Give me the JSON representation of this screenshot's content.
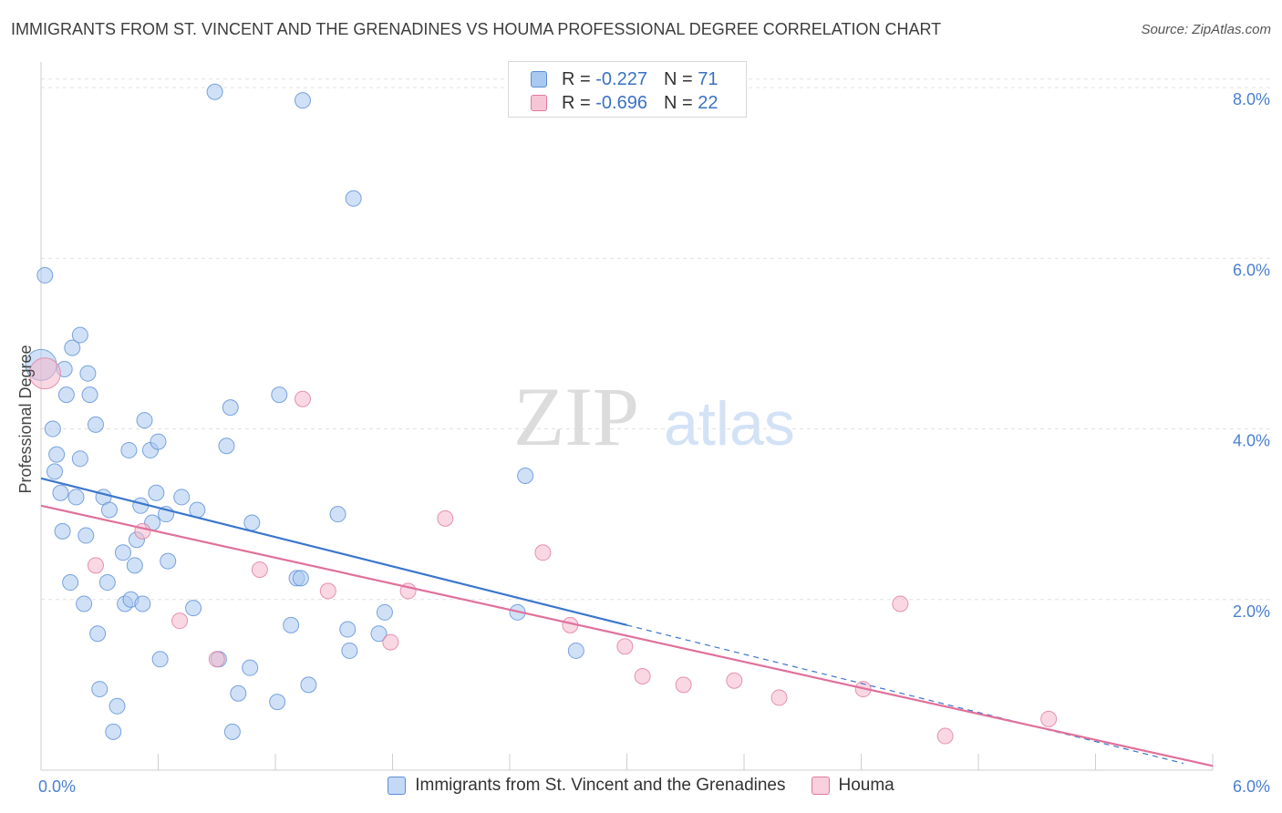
{
  "header": {
    "title": "IMMIGRANTS FROM ST. VINCENT AND THE GRENADINES VS HOUMA PROFESSIONAL DEGREE CORRELATION CHART",
    "source": "Source: ZipAtlas.com"
  },
  "watermark": {
    "zip": "ZIP",
    "atlas": "atlas"
  },
  "legend": {
    "rows": [
      {
        "r_label": "R =",
        "r_value": "-0.227",
        "n_label": "N =",
        "n_value": "71"
      },
      {
        "r_label": "R =",
        "r_value": "-0.696",
        "n_label": "N =",
        "n_value": "22"
      }
    ]
  },
  "colors": {
    "blue_fill": "#a9c9f1",
    "blue_stroke": "#5b8fd6",
    "blue_line": "#3a76cc",
    "pink_fill": "#f6b8cc",
    "pink_stroke": "#e07a9c",
    "pink_line": "#e0709a",
    "tick_text": "#4a7fd0",
    "grid": "#e2e2e2"
  },
  "chart_data": {
    "type": "scatter",
    "title": "IMMIGRANTS FROM ST. VINCENT AND THE GRENADINES VS HOUMA PROFESSIONAL DEGREE CORRELATION CHART",
    "xlabel": "",
    "ylabel": "Professional Degree",
    "xlim": [
      0,
      6
    ],
    "ylim": [
      0,
      8.3
    ],
    "x_tick_labels": [
      "0.0%",
      "6.0%"
    ],
    "y_ticks": [
      2,
      4,
      6,
      8
    ],
    "y_tick_labels": [
      "2.0%",
      "4.0%",
      "6.0%",
      "8.0%"
    ],
    "grid": true,
    "legend_position": "top-center",
    "series": [
      {
        "name": "Immigrants from St. Vincent and the Grenadines",
        "color": "#a9c9f1",
        "points": [
          [
            0.0,
            4.75
          ],
          [
            0.02,
            5.8
          ],
          [
            0.06,
            4.0
          ],
          [
            0.07,
            3.5
          ],
          [
            0.08,
            3.7
          ],
          [
            0.1,
            3.25
          ],
          [
            0.11,
            2.8
          ],
          [
            0.12,
            4.7
          ],
          [
            0.13,
            4.4
          ],
          [
            0.16,
            4.95
          ],
          [
            0.15,
            2.2
          ],
          [
            0.18,
            3.2
          ],
          [
            0.2,
            3.65
          ],
          [
            0.2,
            5.1
          ],
          [
            0.22,
            1.95
          ],
          [
            0.23,
            2.75
          ],
          [
            0.24,
            4.65
          ],
          [
            0.25,
            4.4
          ],
          [
            0.28,
            4.05
          ],
          [
            0.29,
            1.6
          ],
          [
            0.3,
            0.95
          ],
          [
            0.32,
            3.2
          ],
          [
            0.34,
            2.2
          ],
          [
            0.35,
            3.05
          ],
          [
            0.37,
            0.45
          ],
          [
            0.39,
            0.75
          ],
          [
            0.42,
            2.55
          ],
          [
            0.43,
            1.95
          ],
          [
            0.45,
            3.75
          ],
          [
            0.46,
            2.0
          ],
          [
            0.48,
            2.4
          ],
          [
            0.49,
            2.7
          ],
          [
            0.51,
            3.1
          ],
          [
            0.52,
            1.95
          ],
          [
            0.53,
            4.1
          ],
          [
            0.56,
            3.75
          ],
          [
            0.57,
            2.9
          ],
          [
            0.59,
            3.25
          ],
          [
            0.6,
            3.85
          ],
          [
            0.61,
            1.3
          ],
          [
            0.64,
            3.0
          ],
          [
            0.65,
            2.45
          ],
          [
            0.72,
            3.2
          ],
          [
            0.78,
            1.9
          ],
          [
            0.8,
            3.05
          ],
          [
            0.89,
            7.95
          ],
          [
            0.91,
            1.3
          ],
          [
            0.95,
            3.8
          ],
          [
            0.97,
            4.25
          ],
          [
            0.98,
            0.45
          ],
          [
            1.01,
            0.9
          ],
          [
            1.07,
            1.2
          ],
          [
            1.08,
            2.9
          ],
          [
            1.21,
            0.8
          ],
          [
            1.22,
            4.4
          ],
          [
            1.28,
            1.7
          ],
          [
            1.31,
            2.25
          ],
          [
            1.33,
            2.25
          ],
          [
            1.34,
            7.85
          ],
          [
            1.37,
            1.0
          ],
          [
            1.52,
            3.0
          ],
          [
            1.57,
            1.65
          ],
          [
            1.58,
            1.4
          ],
          [
            1.6,
            6.7
          ],
          [
            1.73,
            1.6
          ],
          [
            1.76,
            1.85
          ],
          [
            2.44,
            1.85
          ],
          [
            2.48,
            3.45
          ],
          [
            2.74,
            1.4
          ]
        ],
        "trend": {
          "x0": 0.0,
          "y0": 3.42,
          "x1": 3.0,
          "y1": 1.7,
          "dashed_to_x": 5.85,
          "dashed_to_y": 0.08
        }
      },
      {
        "name": "Houma",
        "color": "#f6b8cc",
        "points": [
          [
            0.02,
            4.65
          ],
          [
            0.28,
            2.4
          ],
          [
            0.52,
            2.8
          ],
          [
            0.71,
            1.75
          ],
          [
            0.9,
            1.3
          ],
          [
            1.12,
            2.35
          ],
          [
            1.34,
            4.35
          ],
          [
            1.47,
            2.1
          ],
          [
            1.79,
            1.5
          ],
          [
            1.88,
            2.1
          ],
          [
            2.07,
            2.95
          ],
          [
            2.57,
            2.55
          ],
          [
            2.71,
            1.7
          ],
          [
            2.99,
            1.45
          ],
          [
            3.08,
            1.1
          ],
          [
            3.29,
            1.0
          ],
          [
            3.55,
            1.05
          ],
          [
            3.78,
            0.85
          ],
          [
            4.21,
            0.95
          ],
          [
            4.4,
            1.95
          ],
          [
            4.63,
            0.4
          ],
          [
            5.16,
            0.6
          ]
        ],
        "trend": {
          "x0": 0.0,
          "y0": 3.1,
          "x1": 6.0,
          "y1": 0.05
        }
      }
    ]
  },
  "bottom_legend": {
    "items": [
      {
        "label": "Immigrants from St. Vincent and the Grenadines"
      },
      {
        "label": "Houma"
      }
    ]
  }
}
